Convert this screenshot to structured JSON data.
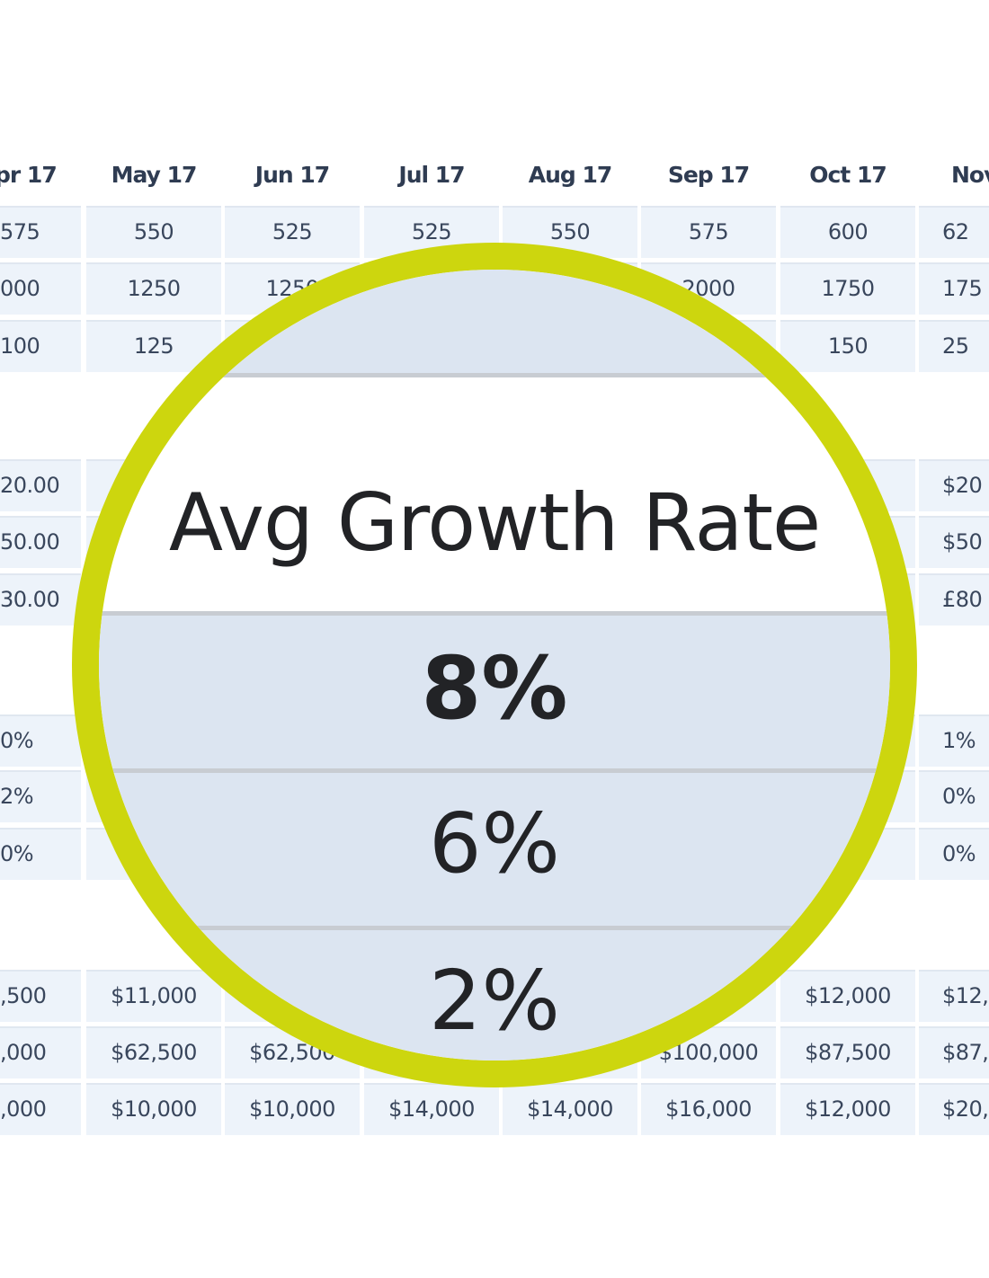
{
  "table": {
    "columns": [
      "pr 17",
      "May 17",
      "Jun 17",
      "Jul 17",
      "Aug 17",
      "Sep 17",
      "Oct 17",
      "Nov"
    ],
    "rows": [
      [
        "575",
        "550",
        "525",
        "525",
        "550",
        "575",
        "600",
        "62"
      ],
      [
        "000",
        "1250",
        "1250",
        "",
        "",
        "2000",
        "1750",
        "175"
      ],
      [
        "100",
        "125",
        "",
        "",
        "",
        "",
        "150",
        "25"
      ],
      [
        "20.00",
        "",
        "",
        "",
        "",
        "",
        "",
        "$20"
      ],
      [
        "50.00",
        "",
        "",
        "",
        "",
        "",
        "",
        "$50"
      ],
      [
        "30.00",
        "",
        "",
        "",
        "",
        "",
        "",
        "£80"
      ],
      [
        "0%",
        "",
        "",
        "",
        "",
        "",
        "",
        "1%"
      ],
      [
        "2%",
        "",
        "",
        "",
        "",
        "",
        "",
        "0%"
      ],
      [
        "0%",
        "",
        "",
        "",
        "",
        "",
        "",
        "0%"
      ],
      [
        ",500",
        "$11,000",
        "",
        "",
        "",
        "",
        "$12,000",
        "$12,"
      ],
      [
        ",000",
        "$62,500",
        "$62,500",
        "",
        "",
        "$100,000",
        "$87,500",
        "$87,"
      ],
      [
        ",000",
        "$10,000",
        "$10,000",
        "$14,000",
        "$14,000",
        "$16,000",
        "$12,000",
        "$20,"
      ]
    ]
  },
  "magnifier": {
    "title": "Avg Growth Rate",
    "values": [
      "8%",
      "6%",
      "2%"
    ],
    "ring_color": "#cdd60e",
    "band_color": "#dce5f1"
  }
}
